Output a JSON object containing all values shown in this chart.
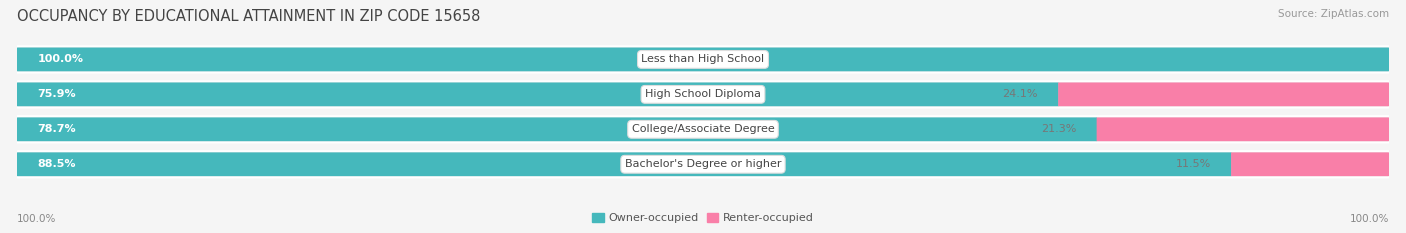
{
  "title": "OCCUPANCY BY EDUCATIONAL ATTAINMENT IN ZIP CODE 15658",
  "source": "Source: ZipAtlas.com",
  "categories": [
    "Less than High School",
    "High School Diploma",
    "College/Associate Degree",
    "Bachelor's Degree or higher"
  ],
  "owner_pct": [
    100.0,
    75.9,
    78.7,
    88.5
  ],
  "renter_pct": [
    0.0,
    24.1,
    21.3,
    11.5
  ],
  "owner_color": "#45b8bc",
  "renter_color": "#f97fa8",
  "bg_color": "#f5f5f5",
  "row_bg_color": "#ebebeb",
  "title_fontsize": 10.5,
  "source_fontsize": 7.5,
  "label_fontsize": 8.0,
  "tick_fontsize": 7.5,
  "legend_fontsize": 8.0
}
